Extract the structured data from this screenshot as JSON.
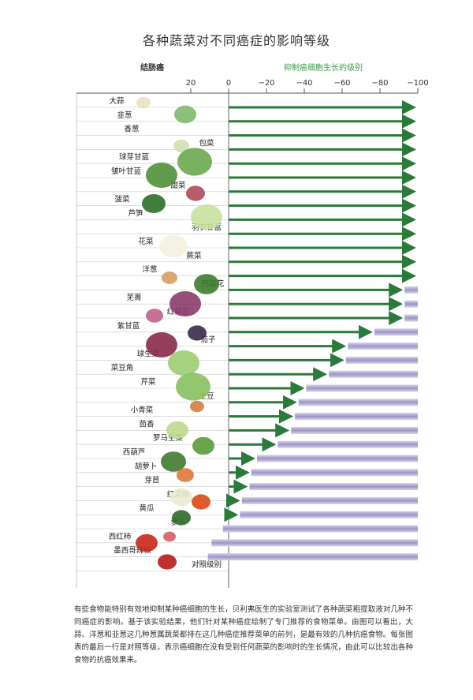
{
  "chart_data": {
    "type": "bar",
    "title": "各种蔬菜对不同癌症的影响等级",
    "left_header": "结肠癌",
    "right_header": "抑制癌细胞生长的级别",
    "x_ticks": [
      "20",
      "0",
      "−20",
      "−40",
      "−60",
      "−80",
      "−100"
    ],
    "xlim": [
      20,
      -100
    ],
    "categories": [
      "大蒜",
      "韭葱",
      "香葱",
      "包菜",
      "球芽甘蓝",
      "皱叶甘蓝",
      "甜菜",
      "菠菜",
      "芦笋",
      "羽衣甘蓝",
      "花菜",
      "蕨菜",
      "洋葱",
      "西蓝花",
      "芜菁",
      "红菊苣",
      "紫甘蓝",
      "茄子",
      "球生菜",
      "菜豆角",
      "芹菜",
      "土豆",
      "小青菜",
      "茴香",
      "罗马生菜",
      "西葫芦",
      "胡萝卜",
      "芽苣",
      "红菜椒",
      "黄瓜",
      "萝卜",
      "西红柿",
      "墨西哥辣椒",
      "对照级别"
    ],
    "values": [
      -100,
      -100,
      -100,
      -100,
      -100,
      -100,
      -100,
      -100,
      -100,
      -100,
      -100,
      -100,
      -100,
      -93,
      -93,
      -93,
      -77,
      -63,
      -62,
      -53,
      -41,
      -37,
      -35,
      -33,
      -26,
      -15,
      -12,
      -11,
      -7,
      -6,
      3,
      9,
      11,
      0
    ],
    "colors": {
      "arrow": "#2a7a3a",
      "bar_light": "#d6d2ea",
      "bar_dark": "#9d95c6",
      "grid": "#c9c9c9"
    }
  },
  "caption": "有些食物能特别有效地抑制某种癌细胞的生长，贝利弗医生的实验室测试了各种蔬菜粗提取液对几种不同癌症的影响。基于该实验结果，他们针对某种癌症绘制了专门推荐的食物菜单。由图可以看出，大蒜、洋葱和韭葱这几种葱属蔬菜都排在这几种癌症推荐菜单的前列，是最有效的几种抗癌食物。每张图表的最后一行是对照等级，表示癌细胞在没有受到任何蔬菜的影响时的生长情况，由此可以比较出各种食物的抗癌效果来。"
}
